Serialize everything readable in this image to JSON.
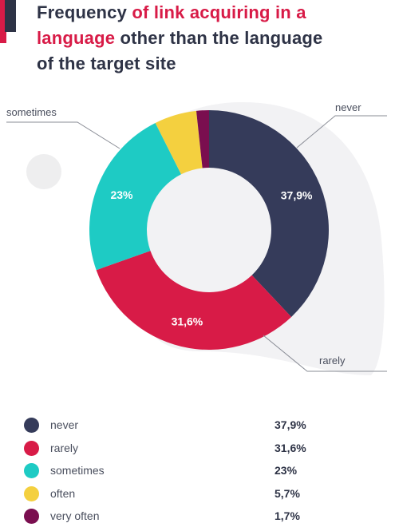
{
  "title": {
    "part1": "Frequency ",
    "part2": "of link acquiring in a",
    "part3": "language",
    "part4": " other than the language",
    "part5": "of the target site"
  },
  "colors": {
    "never": "#353b5a",
    "rarely": "#d81b47",
    "sometimes": "#1ecbc4",
    "often": "#f4d03f",
    "very often": "#7a0e4f",
    "accent": "#d81b47",
    "dark": "#2e3346"
  },
  "chart_data": {
    "type": "pie",
    "donut": true,
    "categories": [
      "never",
      "rarely",
      "sometimes",
      "often",
      "very often"
    ],
    "values": [
      37.9,
      31.6,
      23,
      5.7,
      1.7
    ],
    "value_labels": [
      "37,9%",
      "31,6%",
      "23%",
      "5,7%",
      "1,7%"
    ],
    "slice_labels_shown": [
      "37,9%",
      "31,6%",
      "23%",
      "",
      ""
    ],
    "callouts": [
      "never",
      "rarely",
      "sometimes"
    ],
    "legend_position": "bottom"
  },
  "legend": [
    {
      "label": "never",
      "value": "37,9%"
    },
    {
      "label": "rarely",
      "value": "31,6%"
    },
    {
      "label": "sometimes",
      "value": "23%"
    },
    {
      "label": "often",
      "value": "5,7%"
    },
    {
      "label": "very often",
      "value": "1,7%"
    }
  ]
}
